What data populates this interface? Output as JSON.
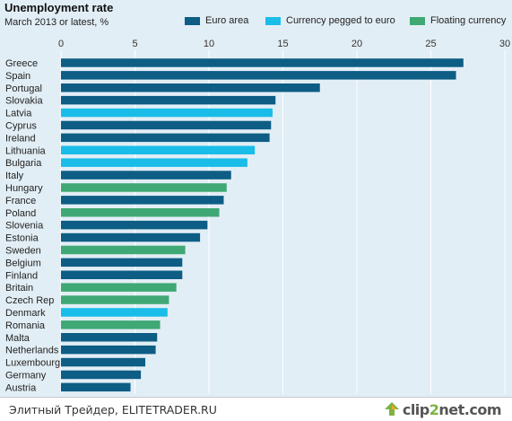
{
  "header": {
    "title": "Unemployment rate",
    "subtitle": "March 2013 or latest, %"
  },
  "colors": {
    "euro_area": "#0d5d85",
    "pegged": "#19bde8",
    "floating": "#3fa874",
    "background": "#e2eef5",
    "grid": "#ffffff"
  },
  "footer": {
    "source_text": "Элитный Трейдер, ELITETRADER.RU",
    "logo_text_a": "clip",
    "logo_text_b": "2",
    "logo_text_c": "net",
    "logo_text_d": ".com"
  },
  "chart_data": {
    "type": "bar",
    "orientation": "horizontal",
    "title": "Unemployment rate",
    "subtitle": "March 2013 or latest, %",
    "xlim": [
      0,
      30
    ],
    "xticks": [
      0,
      5,
      10,
      15,
      20,
      25,
      30
    ],
    "grid": true,
    "legend_position": "top-right",
    "legend": [
      {
        "key": "euro",
        "label": "Euro area",
        "color": "#0d5d85"
      },
      {
        "key": "pegged",
        "label": "Currency pegged to euro",
        "color": "#19bde8"
      },
      {
        "key": "floating",
        "label": "Floating currency",
        "color": "#3fa874"
      }
    ],
    "categories": [
      "Greece",
      "Spain",
      "Portugal",
      "Slovakia",
      "Latvia",
      "Cyprus",
      "Ireland",
      "Lithuania",
      "Bulgaria",
      "Italy",
      "Hungary",
      "France",
      "Poland",
      "Slovenia",
      "Estonia",
      "Sweden",
      "Belgium",
      "Finland",
      "Britain",
      "Czech Rep",
      "Denmark",
      "Romania",
      "Malta",
      "Netherlands",
      "Luxembourg",
      "Germany",
      "Austria"
    ],
    "values": [
      27.2,
      26.7,
      17.5,
      14.5,
      14.3,
      14.2,
      14.1,
      13.1,
      12.6,
      11.5,
      11.2,
      11.0,
      10.7,
      9.9,
      9.4,
      8.4,
      8.2,
      8.2,
      7.8,
      7.3,
      7.2,
      6.7,
      6.5,
      6.4,
      5.7,
      5.4,
      4.7
    ],
    "groups": [
      "euro",
      "euro",
      "euro",
      "euro",
      "pegged",
      "euro",
      "euro",
      "pegged",
      "pegged",
      "euro",
      "floating",
      "euro",
      "floating",
      "euro",
      "euro",
      "floating",
      "euro",
      "euro",
      "floating",
      "floating",
      "pegged",
      "floating",
      "euro",
      "euro",
      "euro",
      "euro",
      "euro"
    ]
  }
}
